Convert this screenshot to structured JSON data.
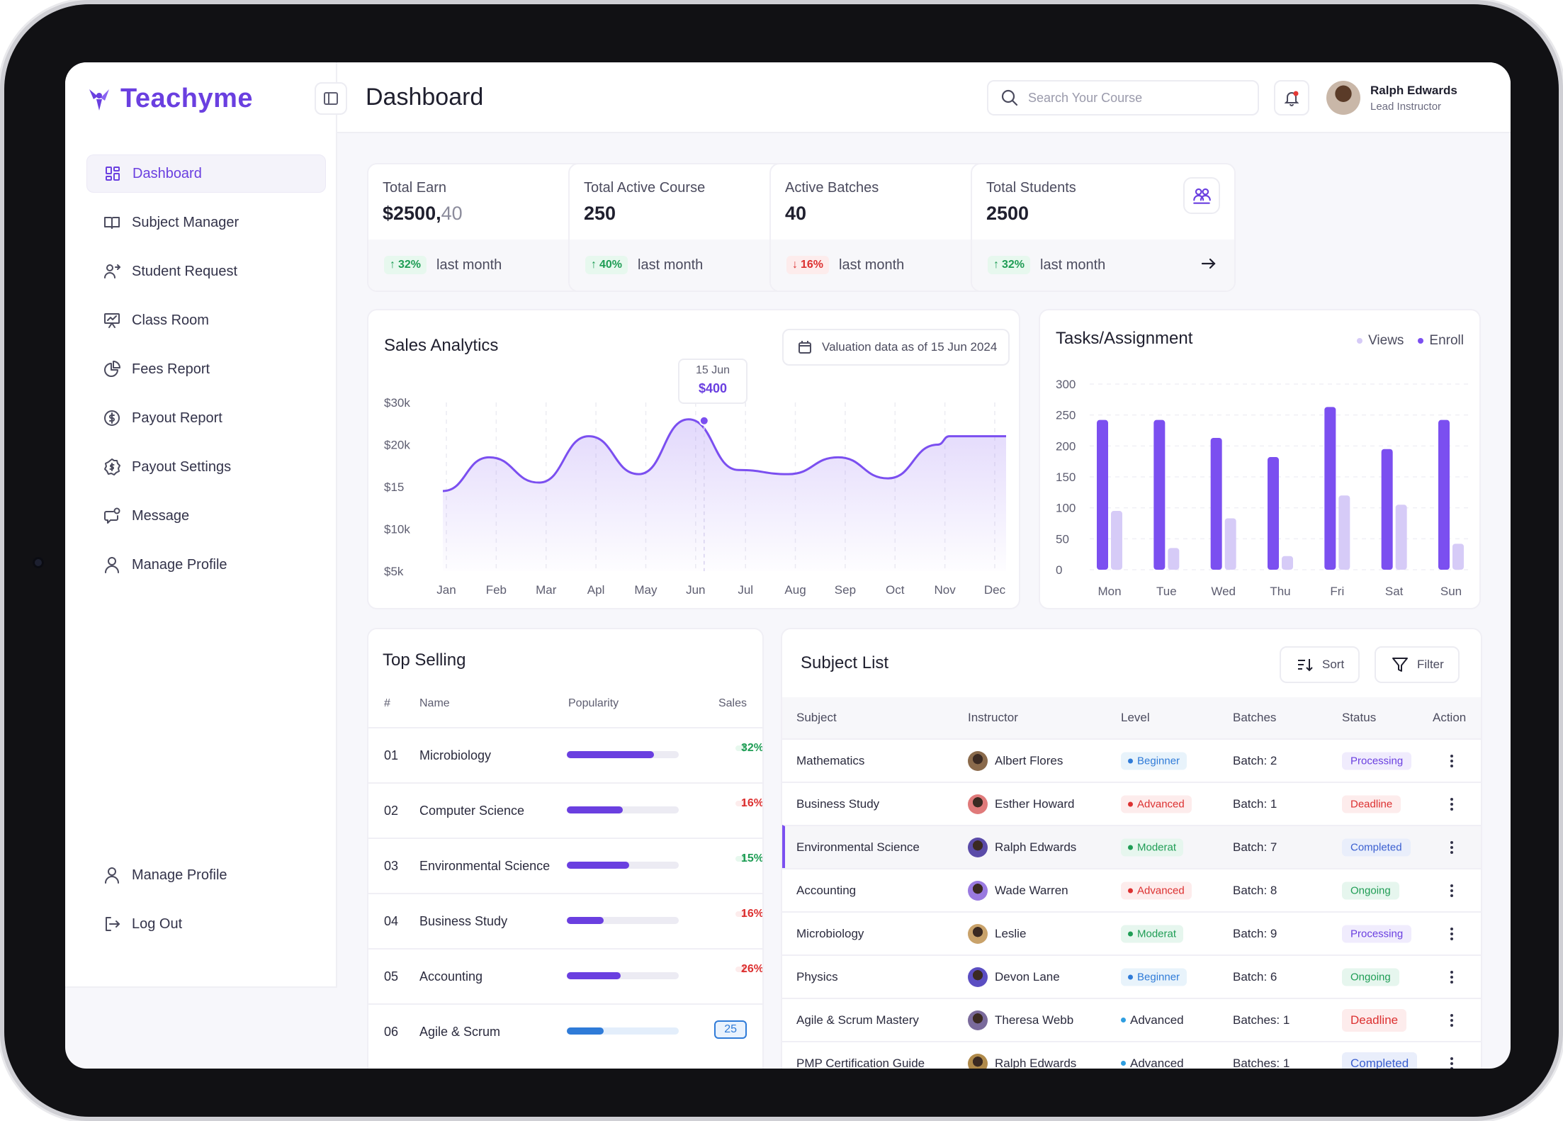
{
  "brand": {
    "name": "Teachyme",
    "color": "#6a3fe0"
  },
  "header": {
    "title": "Dashboard",
    "search_placeholder": "Search Your Course",
    "user": {
      "name": "Ralph Edwards",
      "role": "Lead Instructor"
    }
  },
  "sidebar": {
    "items": [
      {
        "label": "Dashboard",
        "icon": "grid-icon",
        "active": true
      },
      {
        "label": "Subject Manager",
        "icon": "book-icon"
      },
      {
        "label": "Student Request",
        "icon": "user-plus-icon"
      },
      {
        "label": "Class Room",
        "icon": "presentation-icon"
      },
      {
        "label": "Fees Report",
        "icon": "pie-chart-icon"
      },
      {
        "label": "Payout Report",
        "icon": "dollar-circle-icon"
      },
      {
        "label": "Payout Settings",
        "icon": "settings-dollar-icon"
      },
      {
        "label": "Message",
        "icon": "message-icon"
      },
      {
        "label": "Manage Profile",
        "icon": "user-icon"
      }
    ],
    "bottom": [
      {
        "label": "Manage Profile",
        "icon": "user-icon"
      },
      {
        "label": "Log Out",
        "icon": "logout-icon"
      }
    ]
  },
  "stats": [
    {
      "label": "Total Earn",
      "value": "$2500,",
      "value_suffix": "40",
      "change": "32%",
      "direction": "up",
      "period": "last month",
      "icon": "dollar-circle-icon"
    },
    {
      "label": "Total Active Course",
      "value": "250",
      "value_suffix": "",
      "change": "40%",
      "direction": "up",
      "period": "last month",
      "icon": "book-open-icon"
    },
    {
      "label": "Active Batches",
      "value": "40",
      "value_suffix": "",
      "change": "16%",
      "direction": "down",
      "period": "last month",
      "icon": "board-icon"
    },
    {
      "label": "Total Students",
      "value": "2500",
      "value_suffix": "",
      "change": "32%",
      "direction": "up",
      "period": "last month",
      "icon": "students-icon"
    }
  ],
  "sales": {
    "title": "Sales Analytics",
    "valuation": "Valuation data as of 15 Jun 2024",
    "tooltip": {
      "date": "15 Jun",
      "value": "$400"
    }
  },
  "tasks": {
    "title": "Tasks/Assignment",
    "legend": [
      "Views",
      "Enroll"
    ]
  },
  "chart_data": [
    {
      "type": "area",
      "title": "Sales Analytics",
      "y_ticks": [
        "$30k",
        "$20k",
        "$15",
        "$10k",
        "$5k"
      ],
      "categories": [
        "Jan",
        "Feb",
        "Mar",
        "Apl",
        "May",
        "Jun",
        "Jul",
        "Aug",
        "Sep",
        "Oct",
        "Nov",
        "Dec"
      ],
      "values": [
        1.9,
        2.7,
        2.1,
        3.2,
        2.3,
        3.6,
        2.4,
        2.3,
        2.7,
        2.2,
        3.0,
        3.2
      ],
      "y_value_scale": "tick index 0=$5k .. 4=$30k",
      "highlight": {
        "x": "Jun",
        "label": "$400"
      },
      "color": "#7b4ff0"
    },
    {
      "type": "bar",
      "title": "Tasks/Assignment",
      "categories": [
        "Mon",
        "Tue",
        "Wed",
        "Thu",
        "Fri",
        "Sat",
        "Sun"
      ],
      "ylim": [
        0,
        300
      ],
      "y_ticks": [
        300,
        250,
        200,
        150,
        100,
        50,
        0
      ],
      "series": [
        {
          "name": "Enroll",
          "color": "#7b4ff0",
          "values": [
            242,
            242,
            213,
            182,
            263,
            195,
            242
          ]
        },
        {
          "name": "Views",
          "color": "#d6cbf7",
          "values": [
            95,
            35,
            83,
            22,
            120,
            105,
            42
          ]
        }
      ]
    }
  ],
  "top_selling": {
    "title": "Top Selling",
    "columns": [
      "#",
      "Name",
      "Popularity",
      "Sales"
    ],
    "rows": [
      {
        "num": "01",
        "name": "Microbiology",
        "popularity": 0.78,
        "sales": "32%",
        "direction": "up"
      },
      {
        "num": "02",
        "name": "Computer Science",
        "popularity": 0.5,
        "sales": "16%",
        "direction": "down"
      },
      {
        "num": "03",
        "name": "Environmental Science",
        "popularity": 0.56,
        "sales": "15%",
        "direction": "up"
      },
      {
        "num": "04",
        "name": "Business Study",
        "popularity": 0.33,
        "sales": "16%",
        "direction": "down"
      },
      {
        "num": "05",
        "name": "Accounting",
        "popularity": 0.48,
        "sales": "26%",
        "direction": "down"
      },
      {
        "num": "06",
        "name": "Agile & Scrum",
        "popularity": 0.33,
        "sales": "25",
        "direction": "neutral"
      }
    ]
  },
  "subject_list": {
    "title": "Subject List",
    "sort_label": "Sort",
    "filter_label": "Filter",
    "columns": [
      "Subject",
      "Instructor",
      "Level",
      "Batches",
      "Status",
      "Action"
    ],
    "rows": [
      {
        "subject": "Mathematics",
        "instructor": "Albert Flores",
        "level": "Beginner",
        "batches": "Batch: 2",
        "status": "Processing"
      },
      {
        "subject": "Business Study",
        "instructor": "Esther Howard",
        "level": "Advanced",
        "batches": "Batch: 1",
        "status": "Deadline"
      },
      {
        "subject": "Environmental Science",
        "instructor": "Ralph Edwards",
        "level": "Moderat",
        "batches": "Batch: 7",
        "status": "Completed"
      },
      {
        "subject": "Accounting",
        "instructor": "Wade Warren",
        "level": "Advanced",
        "batches": "Batch: 8",
        "status": "Ongoing"
      },
      {
        "subject": "Microbiology",
        "instructor": "Leslie",
        "level": "Moderat",
        "batches": "Batch: 9",
        "status": "Processing"
      },
      {
        "subject": "Physics",
        "instructor": "Devon Lane",
        "level": "Beginner",
        "batches": "Batch: 6",
        "status": "Ongoing"
      },
      {
        "subject": "Agile & Scrum Mastery",
        "instructor": "Theresa Webb",
        "level": "Advanced",
        "batches": "Batches: 1",
        "status": "Deadline"
      },
      {
        "subject": "PMP Certification Guide",
        "instructor": "Ralph Edwards",
        "level": "Advanced",
        "batches": "Batches: 1",
        "status": "Completed"
      }
    ]
  }
}
